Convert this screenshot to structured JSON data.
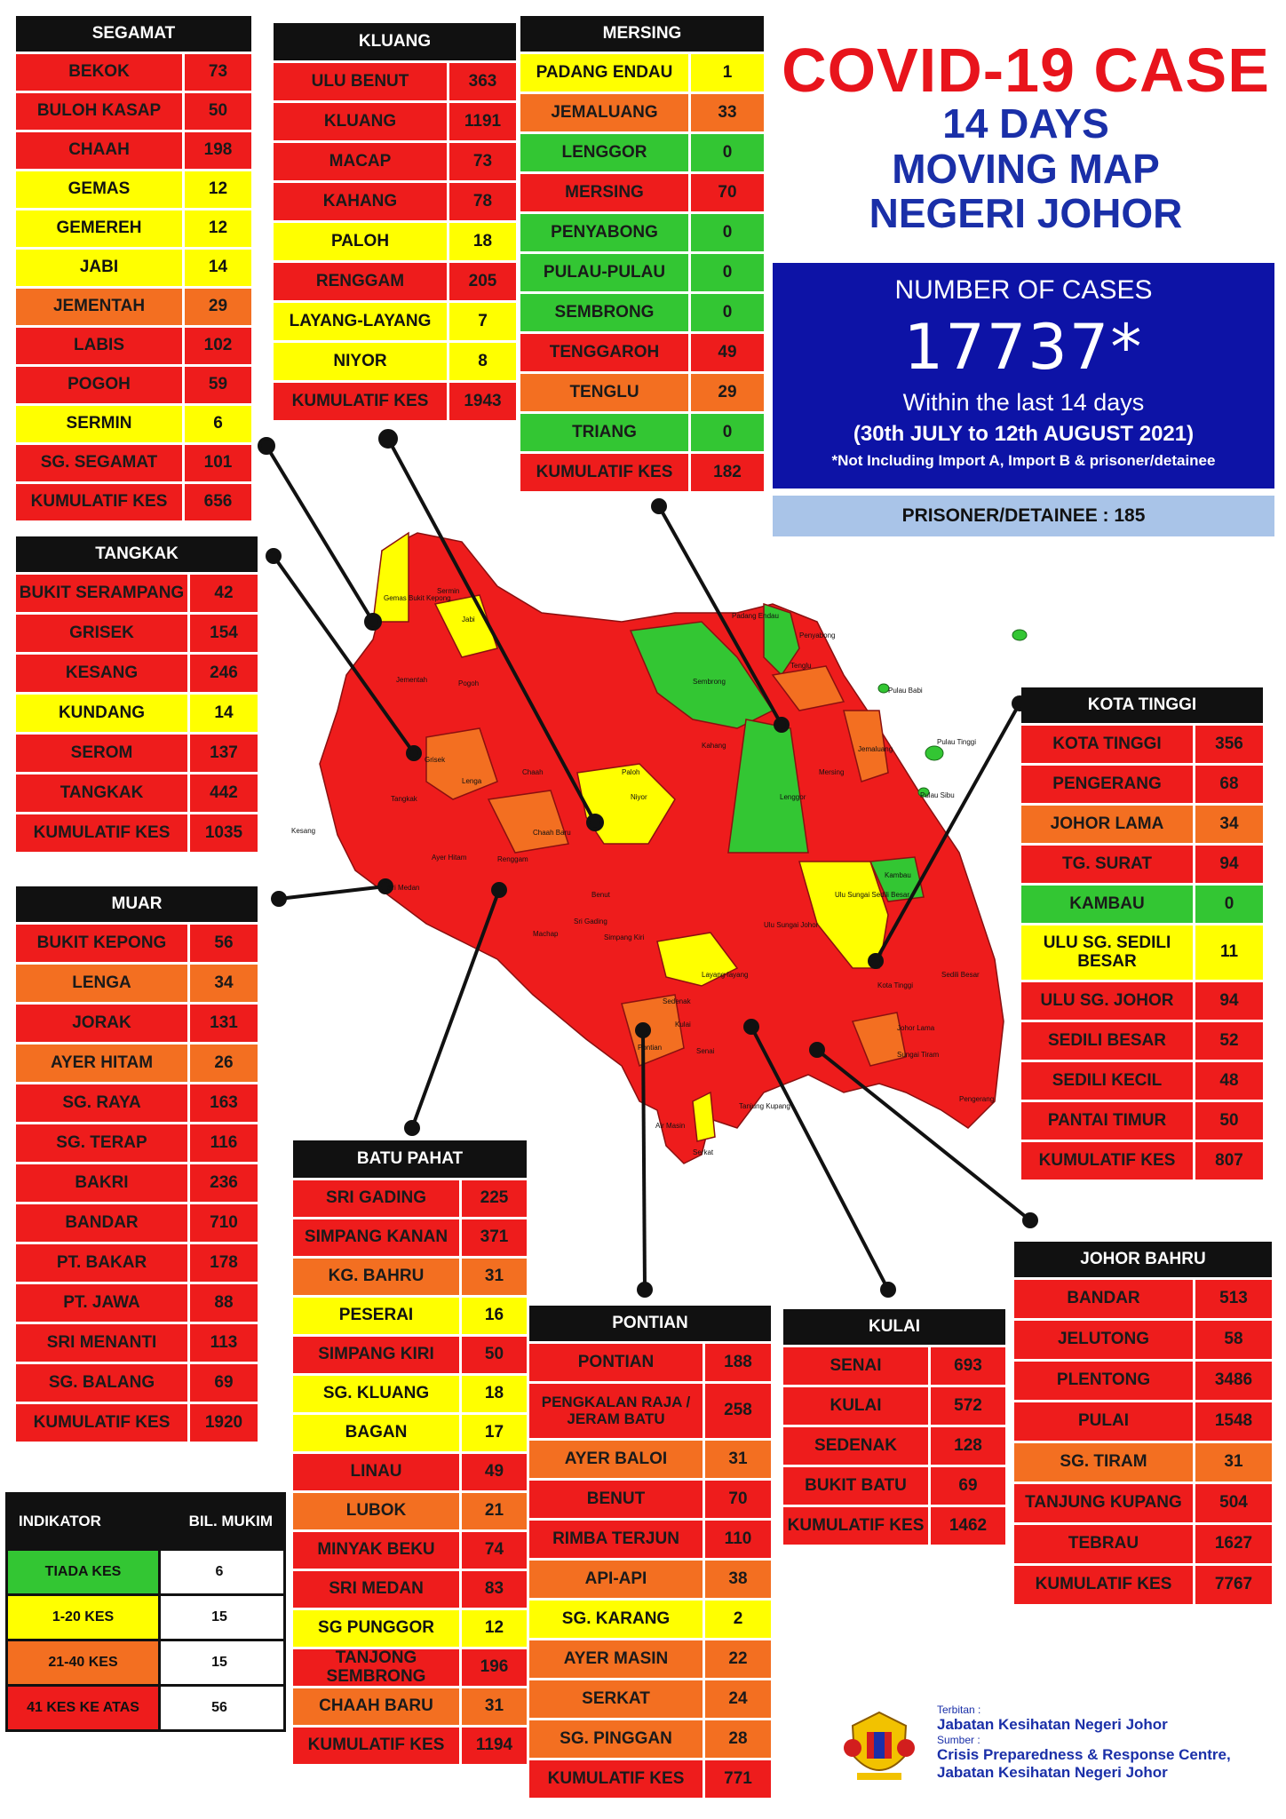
{
  "title": {
    "line1": "COVID-19 CASE",
    "line2": "14 DAYS",
    "line3": "MOVING MAP",
    "line4": "NEGERI JOHOR"
  },
  "summary": {
    "label": "NUMBER OF CASES",
    "count": "17737*",
    "within": "Within the last 14 days",
    "period": "(30th JULY to 12th AUGUST 2021)",
    "note": "*Not Including Import A, Import B & prisoner/detainee",
    "prisoner": "PRISONER/DETAINEE : 185"
  },
  "colors": {
    "red": "#ee1c1c",
    "orange": "#f36f21",
    "yellow": "#ffff00",
    "green": "#33c633",
    "title_red": "#e8141c",
    "navy": "#0d13a6"
  },
  "districts": [
    {
      "name": "SEGAMAT",
      "rows": [
        [
          "BEKOK",
          "73",
          "red"
        ],
        [
          "BULOH KASAP",
          "50",
          "red"
        ],
        [
          "CHAAH",
          "198",
          "red"
        ],
        [
          "GEMAS",
          "12",
          "yel"
        ],
        [
          "GEMEREH",
          "12",
          "yel"
        ],
        [
          "JABI",
          "14",
          "yel"
        ],
        [
          "JEMENTAH",
          "29",
          "org"
        ],
        [
          "LABIS",
          "102",
          "red"
        ],
        [
          "POGOH",
          "59",
          "red"
        ],
        [
          "SERMIN",
          "6",
          "yel"
        ],
        [
          "SG. SEGAMAT",
          "101",
          "red"
        ],
        [
          "KUMULATIF KES",
          "656",
          "red"
        ]
      ]
    },
    {
      "name": "KLUANG",
      "rows": [
        [
          "ULU BENUT",
          "363",
          "red"
        ],
        [
          "KLUANG",
          "1191",
          "red"
        ],
        [
          "MACAP",
          "73",
          "red"
        ],
        [
          "KAHANG",
          "78",
          "red"
        ],
        [
          "PALOH",
          "18",
          "yel"
        ],
        [
          "RENGGAM",
          "205",
          "red"
        ],
        [
          "LAYANG-LAYANG",
          "7",
          "yel"
        ],
        [
          "NIYOR",
          "8",
          "yel"
        ],
        [
          "KUMULATIF KES",
          "1943",
          "red"
        ]
      ]
    },
    {
      "name": "MERSING",
      "rows": [
        [
          "PADANG ENDAU",
          "1",
          "yel"
        ],
        [
          "JEMALUANG",
          "33",
          "org"
        ],
        [
          "LENGGOR",
          "0",
          "grn"
        ],
        [
          "MERSING",
          "70",
          "red"
        ],
        [
          "PENYABONG",
          "0",
          "grn"
        ],
        [
          "PULAU-PULAU",
          "0",
          "grn"
        ],
        [
          "SEMBRONG",
          "0",
          "grn"
        ],
        [
          "TENGGAROH",
          "49",
          "red"
        ],
        [
          "TENGLU",
          "29",
          "org"
        ],
        [
          "TRIANG",
          "0",
          "grn"
        ],
        [
          "KUMULATIF KES",
          "182",
          "red"
        ]
      ]
    },
    {
      "name": "TANGKAK",
      "rows": [
        [
          "BUKIT SERAMPANG",
          "42",
          "red"
        ],
        [
          "GRISEK",
          "154",
          "red"
        ],
        [
          "KESANG",
          "246",
          "red"
        ],
        [
          "KUNDANG",
          "14",
          "yel"
        ],
        [
          "SEROM",
          "137",
          "red"
        ],
        [
          "TANGKAK",
          "442",
          "red"
        ],
        [
          "KUMULATIF KES",
          "1035",
          "red"
        ]
      ]
    },
    {
      "name": "MUAR",
      "rows": [
        [
          "BUKIT KEPONG",
          "56",
          "red"
        ],
        [
          "LENGA",
          "34",
          "org"
        ],
        [
          "JORAK",
          "131",
          "red"
        ],
        [
          "AYER HITAM",
          "26",
          "org"
        ],
        [
          "SG. RAYA",
          "163",
          "red"
        ],
        [
          "SG. TERAP",
          "116",
          "red"
        ],
        [
          "BAKRI",
          "236",
          "red"
        ],
        [
          "BANDAR",
          "710",
          "red"
        ],
        [
          "PT. BAKAR",
          "178",
          "red"
        ],
        [
          "PT. JAWA",
          "88",
          "red"
        ],
        [
          "SRI MENANTI",
          "113",
          "red"
        ],
        [
          "SG. BALANG",
          "69",
          "red"
        ],
        [
          "KUMULATIF KES",
          "1920",
          "red"
        ]
      ]
    },
    {
      "name": "KOTA TINGGI",
      "rows": [
        [
          "KOTA TINGGI",
          "356",
          "red"
        ],
        [
          "PENGERANG",
          "68",
          "red"
        ],
        [
          "JOHOR LAMA",
          "34",
          "org"
        ],
        [
          "TG. SURAT",
          "94",
          "red"
        ],
        [
          "KAMBAU",
          "0",
          "grn"
        ],
        [
          "ULU SG. SEDILI BESAR",
          "11",
          "yel"
        ],
        [
          "ULU  SG. JOHOR",
          "94",
          "red"
        ],
        [
          "SEDILI BESAR",
          "52",
          "red"
        ],
        [
          "SEDILI KECIL",
          "48",
          "red"
        ],
        [
          "PANTAI TIMUR",
          "50",
          "red"
        ],
        [
          "KUMULATIF KES",
          "807",
          "red"
        ]
      ]
    },
    {
      "name": "BATU PAHAT",
      "rows": [
        [
          "SRI GADING",
          "225",
          "red"
        ],
        [
          "SIMPANG KANAN",
          "371",
          "red"
        ],
        [
          "KG. BAHRU",
          "31",
          "org"
        ],
        [
          "PESERAI",
          "16",
          "yel"
        ],
        [
          "SIMPANG KIRI",
          "50",
          "red"
        ],
        [
          "SG. KLUANG",
          "18",
          "yel"
        ],
        [
          "BAGAN",
          "17",
          "yel"
        ],
        [
          "LINAU",
          "49",
          "red"
        ],
        [
          "LUBOK",
          "21",
          "org"
        ],
        [
          "MINYAK BEKU",
          "74",
          "red"
        ],
        [
          "SRI MEDAN",
          "83",
          "red"
        ],
        [
          "SG PUNGGOR",
          "12",
          "yel"
        ],
        [
          "TANJONG SEMBRONG",
          "196",
          "red"
        ],
        [
          "CHAAH BARU",
          "31",
          "org"
        ],
        [
          "KUMULATIF KES",
          "1194",
          "red"
        ]
      ]
    },
    {
      "name": "PONTIAN",
      "rows": [
        [
          "PONTIAN",
          "188",
          "red"
        ],
        [
          "PENGKALAN RAJA / JERAM BATU",
          "258",
          "red"
        ],
        [
          "AYER BALOI",
          "31",
          "org"
        ],
        [
          "BENUT",
          "70",
          "red"
        ],
        [
          "RIMBA TERJUN",
          "110",
          "red"
        ],
        [
          "API-API",
          "38",
          "org"
        ],
        [
          "SG. KARANG",
          "2",
          "yel"
        ],
        [
          "AYER MASIN",
          "22",
          "org"
        ],
        [
          "SERKAT",
          "24",
          "org"
        ],
        [
          "SG. PINGGAN",
          "28",
          "org"
        ],
        [
          "KUMULATIF KES",
          "771",
          "red"
        ]
      ]
    },
    {
      "name": "KULAI",
      "rows": [
        [
          "SENAI",
          "693",
          "red"
        ],
        [
          "KULAI",
          "572",
          "red"
        ],
        [
          "SEDENAK",
          "128",
          "red"
        ],
        [
          "BUKIT BATU",
          "69",
          "red"
        ],
        [
          "KUMULATIF KES",
          "1462",
          "red"
        ]
      ]
    },
    {
      "name": "JOHOR BAHRU",
      "rows": [
        [
          "BANDAR",
          "513",
          "red"
        ],
        [
          "JELUTONG",
          "58",
          "red"
        ],
        [
          "PLENTONG",
          "3486",
          "red"
        ],
        [
          "PULAI",
          "1548",
          "red"
        ],
        [
          "SG. TIRAM",
          "31",
          "org"
        ],
        [
          "TANJUNG KUPANG",
          "504",
          "red"
        ],
        [
          "TEBRAU",
          "1627",
          "red"
        ],
        [
          "KUMULATIF KES",
          "7767",
          "red"
        ]
      ]
    }
  ],
  "legend": {
    "header_left": "INDIKATOR",
    "header_right": "BIL. MUKIM",
    "rows": [
      [
        "TIADA KES",
        "6",
        "grn"
      ],
      [
        "1-20 KES",
        "15",
        "yel"
      ],
      [
        "21-40 KES",
        "15",
        "org"
      ],
      [
        "41 KES KE ATAS",
        "56",
        "red"
      ]
    ]
  },
  "footer": {
    "l1": "Terbitan :",
    "l2": "Jabatan Kesihatan Negeri Johor",
    "l3": "Sumber :",
    "l4": "Crisis Preparedness & Response Centre,",
    "l5": "Jabatan Kesihatan Negeri Johor"
  },
  "map_labels": [
    "Gemas",
    "Bukit Kepong",
    "Sermin",
    "Jabi",
    "Jementah",
    "Pogoh",
    "Grisek",
    "Lenga",
    "Chaah",
    "Paloh",
    "Niyor",
    "Sembrong",
    "Penyabong",
    "Tenglu",
    "Pulau Babi",
    "Pulau Tinggi",
    "Pulau Sibu",
    "Jemaluang",
    "Lenggor",
    "Kambau",
    "Mersing",
    "Kesang",
    "Tangkak",
    "Ayer Hitam",
    "Sri Medan",
    "Chaah Baru",
    "Simpang Kiri",
    "Layang-layang",
    "Ulu Sungai Sedili Besar",
    "Kota Tinggi",
    "Johor Lama",
    "Sungai Tiram",
    "Pengerang",
    "Pontian",
    "Air Masin",
    "Serkat",
    "Tanjung Kupang",
    "Sedenak",
    "Kulai",
    "Senai",
    "Ulu Sungai Johor",
    "Sedili Besar",
    "Padang Endau",
    "Kahang",
    "Renggam",
    "Machap",
    "Benut",
    "Sri Gading"
  ]
}
